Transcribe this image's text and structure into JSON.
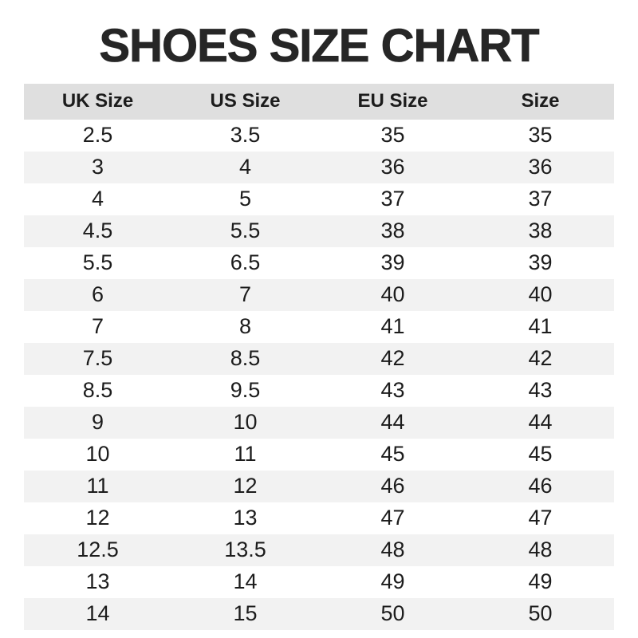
{
  "title": "SHOES SIZE CHART",
  "colors": {
    "title_text": "#262626",
    "header_background": "#dfdfdf",
    "stripe_background": "#f2f2f2",
    "body_text": "#1c1c1c",
    "page_background": "#ffffff"
  },
  "chart_data": {
    "type": "table",
    "title": "SHOES SIZE CHART",
    "columns": [
      "UK Size",
      "US Size",
      "EU Size",
      "Size"
    ],
    "rows": [
      [
        "2.5",
        "3.5",
        "35",
        "35"
      ],
      [
        "3",
        "4",
        "36",
        "36"
      ],
      [
        "4",
        "5",
        "37",
        "37"
      ],
      [
        "4.5",
        "5.5",
        "38",
        "38"
      ],
      [
        "5.5",
        "6.5",
        "39",
        "39"
      ],
      [
        "6",
        "7",
        "40",
        "40"
      ],
      [
        "7",
        "8",
        "41",
        "41"
      ],
      [
        "7.5",
        "8.5",
        "42",
        "42"
      ],
      [
        "8.5",
        "9.5",
        "43",
        "43"
      ],
      [
        "9",
        "10",
        "44",
        "44"
      ],
      [
        "10",
        "11",
        "45",
        "45"
      ],
      [
        "11",
        "12",
        "46",
        "46"
      ],
      [
        "12",
        "13",
        "47",
        "47"
      ],
      [
        "12.5",
        "13.5",
        "48",
        "48"
      ],
      [
        "13",
        "14",
        "49",
        "49"
      ],
      [
        "14",
        "15",
        "50",
        "50"
      ]
    ],
    "layout": {
      "striped_rows": "even rows shaded",
      "grid_lines": "none",
      "column_alignment": "center"
    }
  }
}
